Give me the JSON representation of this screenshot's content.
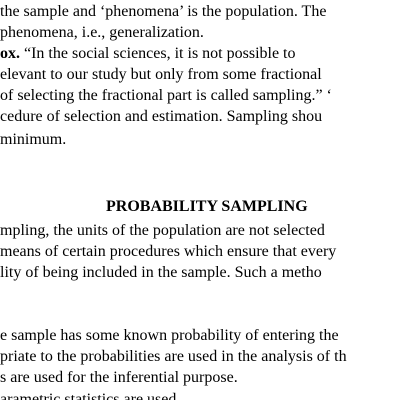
{
  "document": {
    "intro_lines": [
      "the sample and ‘phenomena’ is the population.  The",
      "phenomena, i.e., generalization."
    ],
    "quote_lead": "ox.",
    "quote_lines": [
      "“In the social sciences, it is not possible to",
      "elevant to our study but only from some fractional",
      "of selecting the fractional part is called sampling.” ‘",
      "cedure of selection and estimation.  Sampling shou",
      "minimum."
    ],
    "section_heading": "PROBABILITY SAMPLING",
    "probability_lines": [
      "mpling, the units of the population are not selected",
      "means of certain procedures which ensure that every",
      "lity of being included in the sample.  Such a metho"
    ],
    "bottom_lines": [
      "e sample has some known probability of entering the",
      "priate to the probabilities are used in the analysis of th",
      "s are used for the inferential purpose.",
      "arametric statistics are used"
    ]
  }
}
